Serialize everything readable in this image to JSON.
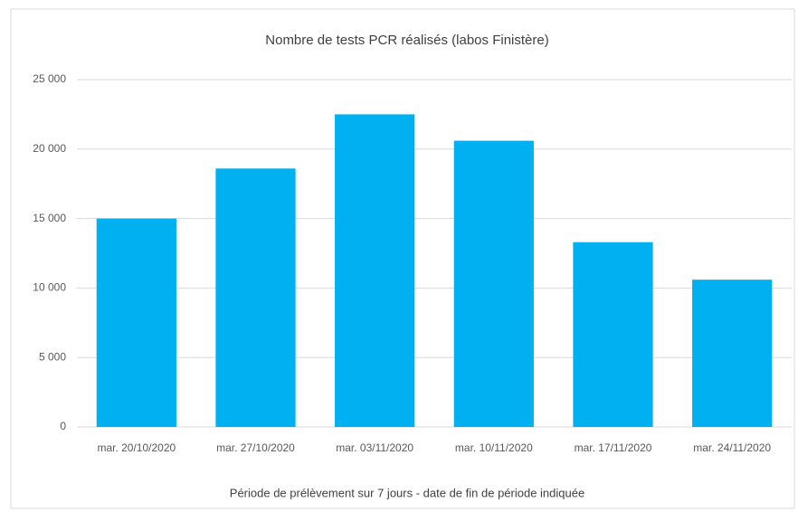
{
  "chart_data": {
    "type": "bar",
    "title": "Nombre de tests PCR réalisés (labos Finistère)",
    "x_label": "Période de prélèvement sur 7 jours - date de fin de période indiquée",
    "categories": [
      "mar. 20/10/2020",
      "mar. 27/10/2020",
      "mar. 03/11/2020",
      "mar. 10/11/2020",
      "mar. 17/11/2020",
      "mar. 24/11/2020"
    ],
    "values": [
      15000,
      18600,
      22500,
      20600,
      13300,
      10600
    ],
    "color": "#00b0f0",
    "ylim": [
      0,
      25000
    ],
    "yticks": [
      0,
      {
        "value": 5000,
        "label": "5 000"
      },
      {
        "value": 10000,
        "label": "10 000"
      },
      {
        "value": 15000,
        "label": "15 000"
      },
      {
        "value": 20000,
        "label": "20 000"
      },
      {
        "value": 25000,
        "label": "25 000"
      }
    ],
    "grid": true
  }
}
